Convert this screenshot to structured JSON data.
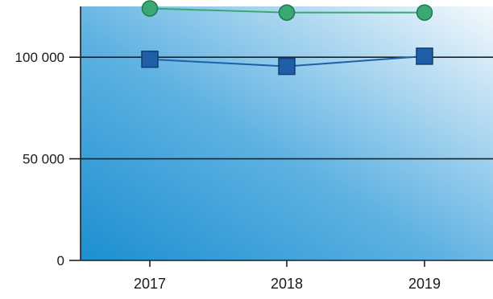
{
  "chart_data": {
    "type": "line",
    "title": "",
    "xlabel": "",
    "ylabel": "",
    "categories": [
      "2017",
      "2018",
      "2019"
    ],
    "ylim": [
      0,
      125000
    ],
    "yticks": [
      0,
      50000,
      100000
    ],
    "ytick_labels": [
      "0",
      "50 000",
      "100 000"
    ],
    "grid": "horizontal",
    "legend": "none",
    "background": "blue-gradient",
    "series": [
      {
        "values": [
          124000,
          122000,
          122000
        ],
        "marker": "circle",
        "color": "#3aa872"
      },
      {
        "values": [
          99000,
          95500,
          100500
        ],
        "marker": "square",
        "color": "#1f5fa8"
      }
    ]
  }
}
